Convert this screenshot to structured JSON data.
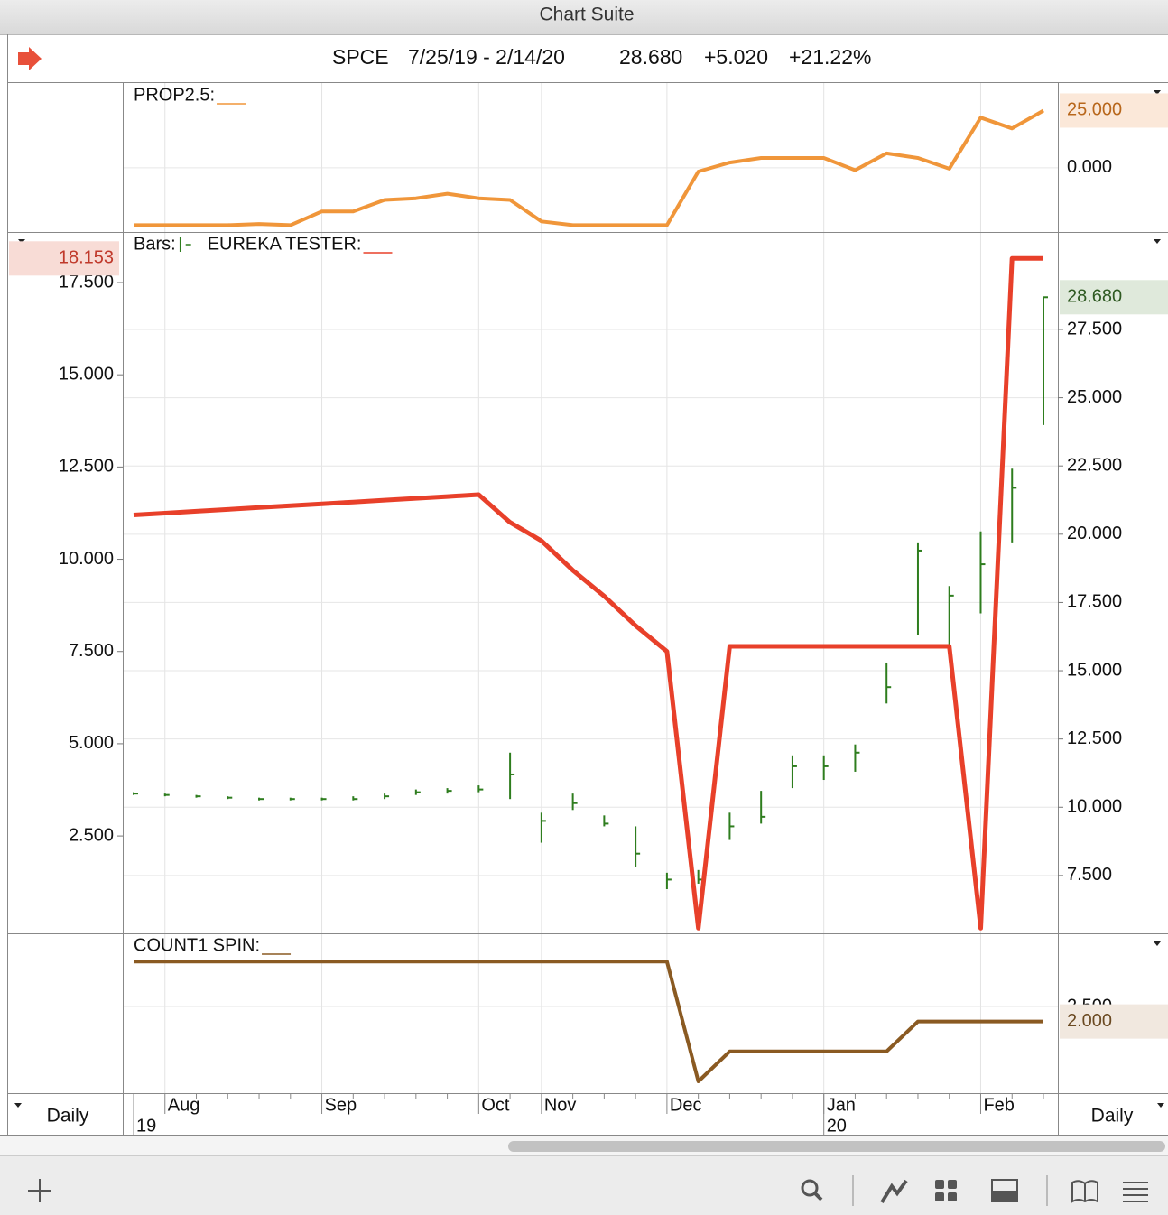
{
  "window": {
    "title": "Chart Suite"
  },
  "header": {
    "symbol": "SPCE",
    "range": "7/25/19 - 2/14/20",
    "last": "28.680",
    "change": "+5.020",
    "percent": "+21.22%"
  },
  "period_labels": [
    "Daily",
    "Daily"
  ],
  "chart_data": [
    {
      "type": "line",
      "series": [
        {
          "name": "PROP2.5:",
          "color": "#f0963a",
          "values": [
            -25,
            -25,
            -25,
            -25,
            -24.5,
            -25,
            -19,
            -19,
            -14,
            -13.3,
            -11.3,
            -13.3,
            -14,
            -23.4,
            -25,
            -25,
            -25,
            -25,
            -1.6,
            2.3,
            4.3,
            4.3,
            4.3,
            -1,
            6.3,
            4.3,
            -0.4,
            21.9,
            17.2,
            25
          ],
          "last_label": {
            "value": 25,
            "label": "25.000"
          }
        }
      ],
      "ylim": [
        -28,
        37
      ],
      "yticks": [
        {
          "value": 0,
          "label": "0.000"
        }
      ],
      "grid": true
    },
    {
      "type": "ohlc",
      "series": [
        {
          "name": "Bars:",
          "color": "#2e7d1e",
          "axis": "y2",
          "high": [
            10.55,
            10.5,
            10.45,
            10.4,
            10.35,
            10.35,
            10.35,
            10.4,
            10.5,
            10.65,
            10.7,
            10.8,
            12.0,
            9.8,
            10.5,
            9.7,
            9.3,
            7.6,
            7.7,
            9.8,
            10.6,
            11.9,
            11.9,
            12.3,
            15.3,
            19.7,
            18.1,
            20.1,
            22.4,
            28.68
          ],
          "low": [
            10.45,
            10.4,
            10.35,
            10.3,
            10.25,
            10.25,
            10.25,
            10.25,
            10.3,
            10.45,
            10.5,
            10.55,
            10.3,
            8.7,
            9.9,
            9.3,
            7.8,
            7.0,
            7.2,
            8.8,
            9.4,
            10.7,
            11.0,
            11.3,
            13.8,
            16.3,
            15.8,
            17.1,
            19.7,
            24.0
          ],
          "close": [
            10.5,
            10.45,
            10.4,
            10.35,
            10.3,
            10.3,
            10.3,
            10.3,
            10.4,
            10.55,
            10.6,
            10.65,
            11.2,
            9.5,
            10.15,
            9.4,
            8.3,
            7.35,
            7.35,
            9.3,
            9.65,
            11.5,
            11.5,
            12.0,
            14.4,
            19.4,
            17.75,
            18.9,
            21.7,
            28.68
          ],
          "last_label": {
            "value": 28.68,
            "label": "28.680"
          }
        },
        {
          "name": "EUREKA TESTER:",
          "color": "#e8402a",
          "values": [
            11.2,
            11.25,
            11.3,
            11.35,
            11.4,
            11.45,
            11.5,
            11.55,
            11.6,
            11.65,
            11.7,
            11.75,
            11.0,
            10.5,
            9.7,
            9.0,
            8.2,
            7.5,
            0,
            7.64,
            7.64,
            7.64,
            7.64,
            7.64,
            7.64,
            7.64,
            7.64,
            0,
            18.153,
            18.153
          ],
          "last_label": {
            "value": 18.153,
            "label": "18.153"
          }
        }
      ],
      "ylim": [
        -0.14,
        18.87
      ],
      "yticks": [
        {
          "value": 2.5,
          "label": "2.500"
        },
        {
          "value": 5,
          "label": "5.000"
        },
        {
          "value": 7.5,
          "label": "7.500"
        },
        {
          "value": 10,
          "label": "10.000"
        },
        {
          "value": 12.5,
          "label": "12.500"
        },
        {
          "value": 15,
          "label": "15.000"
        },
        {
          "value": 17.5,
          "label": "17.500"
        }
      ],
      "y2lim": [
        5.38,
        31.07
      ],
      "y2ticks": [
        {
          "value": 7.5,
          "label": "7.500"
        },
        {
          "value": 10,
          "label": "10.000"
        },
        {
          "value": 12.5,
          "label": "12.500"
        },
        {
          "value": 15,
          "label": "15.000"
        },
        {
          "value": 17.5,
          "label": "17.500"
        },
        {
          "value": 20,
          "label": "20.000"
        },
        {
          "value": 22.5,
          "label": "22.500"
        },
        {
          "value": 25,
          "label": "25.000"
        },
        {
          "value": 27.5,
          "label": "27.500"
        }
      ],
      "grid": true
    },
    {
      "type": "line",
      "categories": [
        null,
        "Aug",
        null,
        null,
        null,
        null,
        "Sep",
        null,
        null,
        null,
        null,
        "Oct",
        null,
        "Nov",
        null,
        null,
        null,
        "Dec",
        null,
        null,
        null,
        null,
        "Jan",
        null,
        null,
        null,
        null,
        "Feb",
        null,
        null
      ],
      "year_labels": [
        "19",
        null,
        null,
        null,
        null,
        null,
        null,
        null,
        null,
        null,
        null,
        null,
        null,
        null,
        null,
        null,
        null,
        null,
        null,
        null,
        null,
        null,
        "20",
        null,
        null,
        null,
        null,
        null,
        null,
        null
      ],
      "series": [
        {
          "name": "COUNT1 SPIN:",
          "color": "#8a5a22",
          "values": [
            4,
            4,
            4,
            4,
            4,
            4,
            4,
            4,
            4,
            4,
            4,
            4,
            4,
            4,
            4,
            4,
            4,
            4,
            0,
            1,
            1,
            1,
            1,
            1,
            1,
            2,
            2,
            2,
            2,
            2
          ],
          "last_label": {
            "value": 2,
            "label": "2.000"
          }
        }
      ],
      "ylim": [
        -0.39,
        4.94
      ],
      "yticks": [
        {
          "value": 2.5,
          "label": "2.500"
        }
      ],
      "grid": true
    }
  ]
}
